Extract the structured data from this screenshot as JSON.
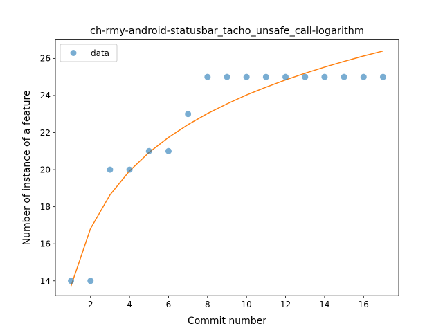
{
  "chart_data": {
    "type": "scatter",
    "title": "ch-rmy-android-statusbar_tacho_unsafe_call-logarithm",
    "xlabel": "Commit number",
    "ylabel": "Number of instance of a feature",
    "xlim": [
      0.2,
      17.8
    ],
    "ylim": [
      13.2,
      27.0
    ],
    "xticks": [
      2,
      4,
      6,
      8,
      10,
      12,
      14,
      16
    ],
    "yticks": [
      14,
      16,
      18,
      20,
      22,
      24,
      26
    ],
    "grid": false,
    "legend_position": "upper-left",
    "series": [
      {
        "name": "data",
        "kind": "scatter",
        "color": "#1f77b4",
        "x": [
          1,
          2,
          3,
          4,
          5,
          6,
          7,
          8,
          9,
          10,
          11,
          12,
          13,
          14,
          15,
          16,
          17
        ],
        "y": [
          14,
          14,
          20,
          20,
          21,
          21,
          23,
          25,
          25,
          25,
          25,
          25,
          25,
          25,
          25,
          25,
          25
        ]
      },
      {
        "kind": "line",
        "color": "#ff7f0e",
        "x": [
          1,
          2,
          3,
          4,
          5,
          6,
          7,
          8,
          9,
          10,
          11,
          12,
          13,
          14,
          15,
          16,
          17
        ],
        "y": [
          13.72,
          16.82,
          18.64,
          19.93,
          20.93,
          21.74,
          22.43,
          23.03,
          23.55,
          24.03,
          24.45,
          24.84,
          25.2,
          25.53,
          25.84,
          26.13,
          26.4
        ]
      }
    ]
  }
}
